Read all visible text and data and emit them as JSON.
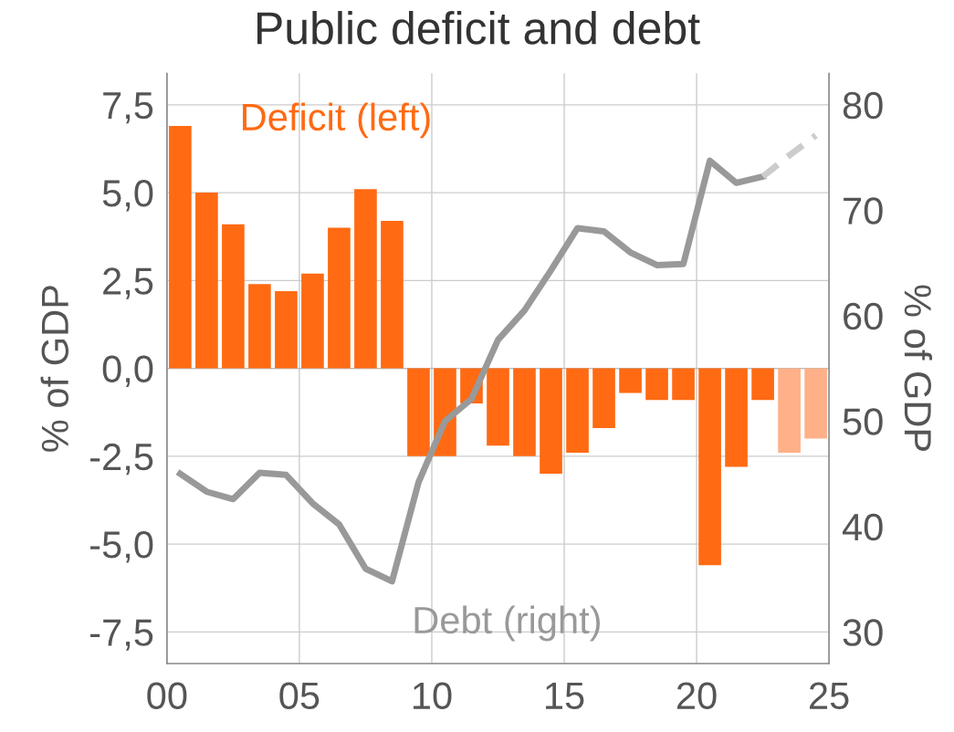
{
  "chart_data": {
    "type": "bar",
    "title": "Public deficit and debt",
    "ylabel": "% of GDP",
    "y2label": "% of GDP",
    "x": [
      0.5,
      1.5,
      2.5,
      3.5,
      4.5,
      5.5,
      6.5,
      7.5,
      8.5,
      9.5,
      10.5,
      11.5,
      12.5,
      13.5,
      14.5,
      15.5,
      16.5,
      17.5,
      18.5,
      19.5,
      20.5,
      21.5,
      22.5,
      23.5,
      24.5
    ],
    "series": [
      {
        "name": "Deficit (left)",
        "color": "#ff6a13",
        "colors": [
          "#ff6a13",
          "#ff6a13",
          "#ff6a13",
          "#ff6a13",
          "#ff6a13",
          "#ff6a13",
          "#ff6a13",
          "#ff6a13",
          "#ff6a13",
          "#ff6a13",
          "#ff6a13",
          "#ff6a13",
          "#ff6a13",
          "#ff6a13",
          "#ff6a13",
          "#ff6a13",
          "#ff6a13",
          "#ff6a13",
          "#ff6a13",
          "#ff6a13",
          "#ff6a13",
          "#ff6a13",
          "#ff6a13",
          "#ffb088",
          "#ffb088"
        ],
        "values": [
          6.9,
          5.0,
          4.1,
          2.4,
          2.2,
          2.7,
          4.0,
          5.1,
          4.2,
          -2.5,
          -2.5,
          -1.0,
          -2.2,
          -2.5,
          -3.0,
          -2.4,
          -1.7,
          -0.7,
          -0.9,
          -0.9,
          -5.6,
          -2.8,
          -0.9,
          -2.4,
          -2.0
        ]
      },
      {
        "name": "Debt (right)",
        "type": "line",
        "axis": "y2",
        "color": "#999999",
        "line_style": "solid",
        "values": [
          45.0,
          43.3,
          42.6,
          45.1,
          44.9,
          42.2,
          40.2,
          36.0,
          34.8,
          44.2,
          50.0,
          52.1,
          57.7,
          60.5,
          64.3,
          68.3,
          68.0,
          66.0,
          64.8,
          64.9,
          74.7,
          72.6,
          73.2,
          null,
          null
        ]
      },
      {
        "type": "line",
        "axis": "y2",
        "color": "#cccccc",
        "line_style": "dashed",
        "values": [
          null,
          null,
          null,
          null,
          null,
          null,
          null,
          null,
          null,
          null,
          null,
          null,
          null,
          null,
          null,
          null,
          null,
          null,
          null,
          null,
          null,
          null,
          73.2,
          75.2,
          77.1
        ]
      }
    ],
    "xlim": [
      0,
      25
    ],
    "xticks": [
      {
        "value": 0,
        "label": "00"
      },
      {
        "value": 5,
        "label": "05"
      },
      10,
      15,
      20,
      25
    ],
    "ylim": [
      -8.4,
      8.4
    ],
    "yticks": [
      {
        "value": -7.5,
        "label": "-7,5"
      },
      {
        "value": -5,
        "label": "-5,0"
      },
      {
        "value": -2.5,
        "label": "-2,5"
      },
      {
        "value": 0,
        "label": "0,0"
      },
      {
        "value": 2.5,
        "label": "2,5"
      },
      {
        "value": 5,
        "label": "5,0"
      },
      {
        "value": 7.5,
        "label": "7,5"
      }
    ],
    "y2lim": [
      27,
      83
    ],
    "y2ticks": [
      30,
      40,
      50,
      60,
      70,
      80
    ],
    "grid": true,
    "legend": false,
    "marker": "none"
  }
}
